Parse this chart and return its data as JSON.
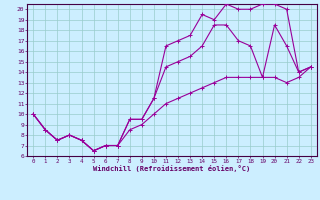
{
  "xlabel": "Windchill (Refroidissement éolien,°C)",
  "bg_color": "#cceeff",
  "line_color": "#990099",
  "grid_color": "#99cccc",
  "axis_color": "#660066",
  "spine_color": "#440044",
  "xlim": [
    -0.5,
    23.5
  ],
  "ylim": [
    6,
    20.5
  ],
  "xticks": [
    0,
    1,
    2,
    3,
    4,
    5,
    6,
    7,
    8,
    9,
    10,
    11,
    12,
    13,
    14,
    15,
    16,
    17,
    18,
    19,
    20,
    21,
    22,
    23
  ],
  "yticks": [
    6,
    7,
    8,
    9,
    10,
    11,
    12,
    13,
    14,
    15,
    16,
    17,
    18,
    19,
    20
  ],
  "line1_x": [
    0,
    1,
    2,
    3,
    4,
    5,
    6,
    7,
    8,
    9,
    10,
    11,
    12,
    13,
    14,
    15,
    16,
    17,
    18,
    19,
    20,
    21,
    22,
    23
  ],
  "line1_y": [
    10,
    8.5,
    7.5,
    8.0,
    7.5,
    6.5,
    7.0,
    7.0,
    9.5,
    9.5,
    11.5,
    16.5,
    17.0,
    17.5,
    19.5,
    19.0,
    20.5,
    20.0,
    20.0,
    20.5,
    20.5,
    20.0,
    14.0,
    14.5
  ],
  "line2_x": [
    0,
    1,
    2,
    3,
    4,
    5,
    6,
    7,
    8,
    9,
    10,
    11,
    12,
    13,
    14,
    15,
    16,
    17,
    18,
    19,
    20,
    21,
    22,
    23
  ],
  "line2_y": [
    10,
    8.5,
    7.5,
    8.0,
    7.5,
    6.5,
    7.0,
    7.0,
    9.5,
    9.5,
    11.5,
    14.5,
    15.0,
    15.5,
    16.5,
    18.5,
    18.5,
    17.0,
    16.5,
    13.5,
    18.5,
    16.5,
    14.0,
    14.5
  ],
  "line3_x": [
    0,
    1,
    2,
    3,
    4,
    5,
    6,
    7,
    8,
    9,
    10,
    11,
    12,
    13,
    14,
    15,
    16,
    17,
    18,
    19,
    20,
    21,
    22,
    23
  ],
  "line3_y": [
    10,
    8.5,
    7.5,
    8.0,
    7.5,
    6.5,
    7.0,
    7.0,
    8.5,
    9.0,
    10.0,
    11.0,
    11.5,
    12.0,
    12.5,
    13.0,
    13.5,
    13.5,
    13.5,
    13.5,
    13.5,
    13.0,
    13.5,
    14.5
  ]
}
